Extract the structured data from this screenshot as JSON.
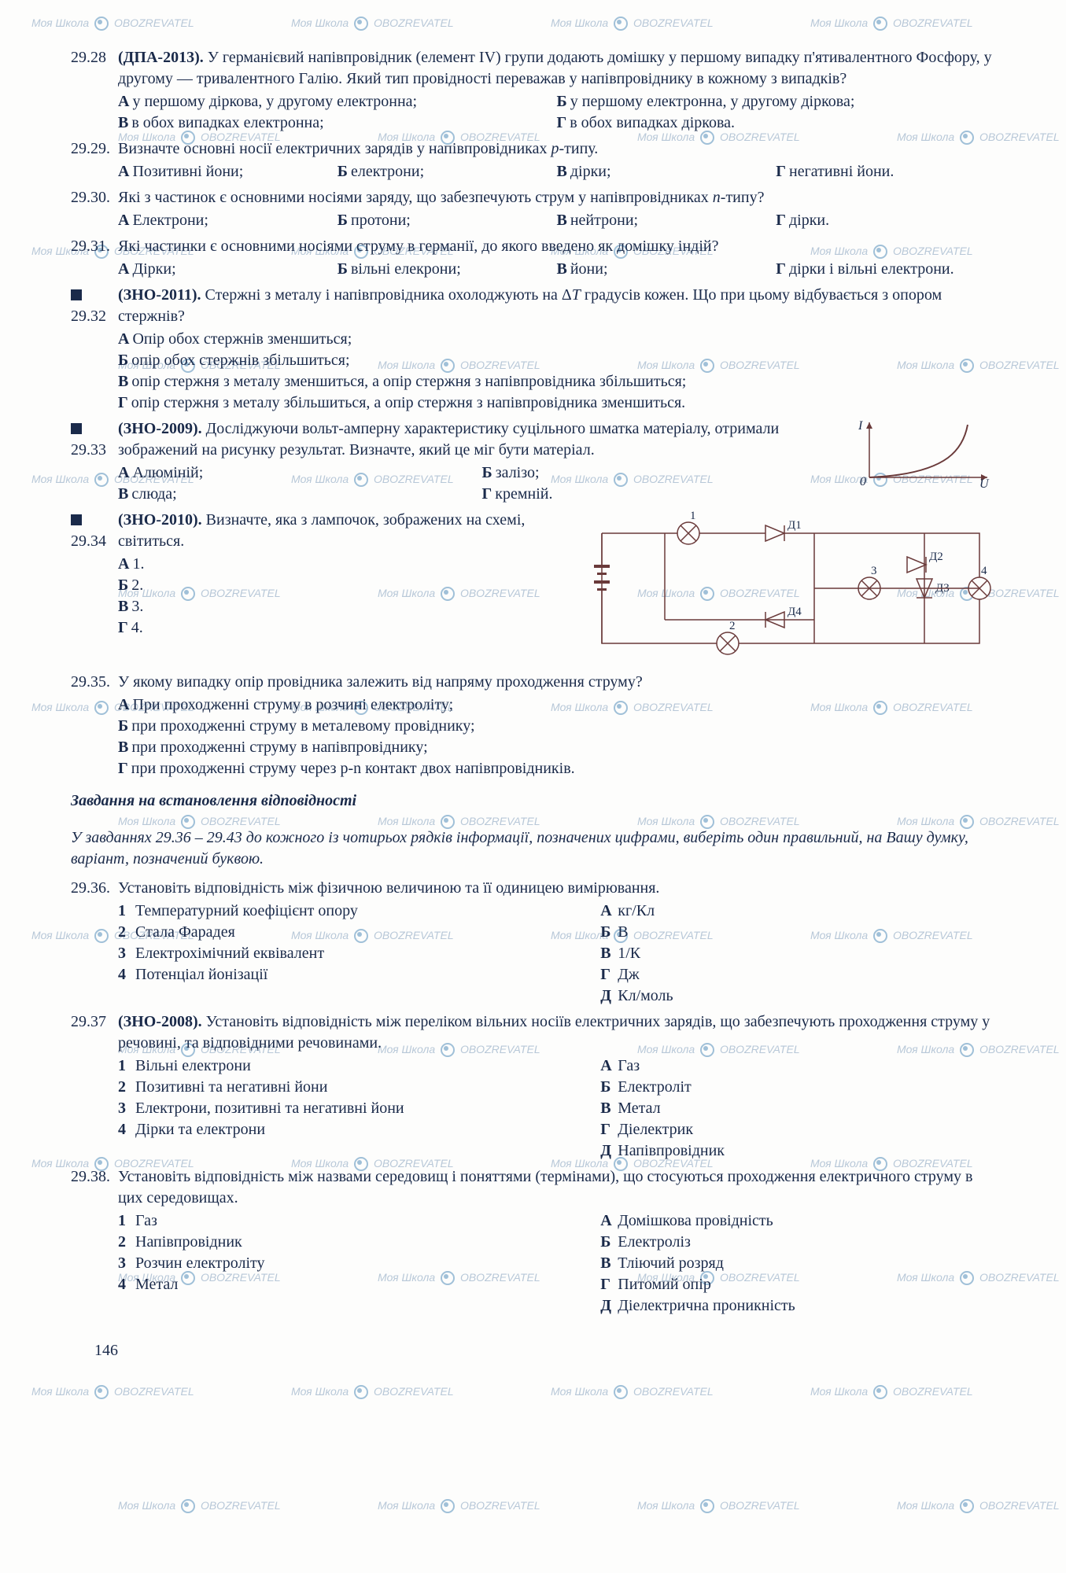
{
  "watermark": {
    "text1": "Моя Школа",
    "text2": "OBOZREVATEL"
  },
  "page_number": "146",
  "questions": [
    {
      "num": "29.28",
      "tag": "(ДПА-2013).",
      "text": "У германієвий напівпровідник (елемент IV) групи додають домішку у першому випадку п'ятивалентного Фосфору, у другому — тривалентного Галію. Який тип провідності переважав у напівпровіднику в кожному з випадків?",
      "layout": "2col",
      "options": [
        {
          "l": "А",
          "t": "у першому діркова, у другому електронна;"
        },
        {
          "l": "Б",
          "t": "у першому електронна, у другому діркова;"
        },
        {
          "l": "В",
          "t": "в обох випадках електронна;"
        },
        {
          "l": "Г",
          "t": "в обох випадках діркова."
        }
      ]
    },
    {
      "num": "29.29.",
      "text": "Визначте основні носії електричних зарядів у напівпровідниках p-типу.",
      "layout": "4col",
      "options": [
        {
          "l": "А",
          "t": "Позитивні йони;"
        },
        {
          "l": "Б",
          "t": "електрони;"
        },
        {
          "l": "В",
          "t": "дірки;"
        },
        {
          "l": "Г",
          "t": "негативні йони."
        }
      ]
    },
    {
      "num": "29.30.",
      "text": "Які з частинок є основними носіями заряду, що забезпечують струм у напівпровідниках n-типу?",
      "layout": "4col",
      "options": [
        {
          "l": "А",
          "t": "Електрони;"
        },
        {
          "l": "Б",
          "t": "протони;"
        },
        {
          "l": "В",
          "t": "нейтрони;"
        },
        {
          "l": "Г",
          "t": "дірки."
        }
      ]
    },
    {
      "num": "29.31.",
      "text": "Які частинки є основними носіями струму в германії, до якого введено як домішку індій?",
      "layout": "4col",
      "options": [
        {
          "l": "А",
          "t": "Дірки;"
        },
        {
          "l": "Б",
          "t": "вільні елекрони;"
        },
        {
          "l": "В",
          "t": "йони;"
        },
        {
          "l": "Г",
          "t": "дірки і вільні електрони."
        }
      ]
    },
    {
      "num": "29.32",
      "video": true,
      "tag": "(ЗНО-2011).",
      "text": "Стержні з металу і напівпровідника охолоджують на ΔT градусів кожен. Що при цьому відбувається з опором стержнів?",
      "layout": "stack",
      "options": [
        {
          "l": "А",
          "t": "Опір обох стержнів зменшиться;"
        },
        {
          "l": "Б",
          "t": "опір обох стержнів збільшиться;"
        },
        {
          "l": "В",
          "t": "опір стержня з металу зменшиться, а опір стержня з напівпровідника збільшиться;"
        },
        {
          "l": "Г",
          "t": "опір стержня з металу збільшиться, а опір стержня з напівпровідника зменшиться."
        }
      ]
    },
    {
      "num": "29.33",
      "video": true,
      "tag": "(ЗНО-2009).",
      "text": "Досліджуючи вольт-амперну характеристику суцільного шматка матеріалу, отримали зображений на рисунку результат. Визначте, який це міг бути матеріал.",
      "layout": "2col",
      "figure": "iv",
      "options": [
        {
          "l": "А",
          "t": "Алюміній;"
        },
        {
          "l": "Б",
          "t": "залізо;"
        },
        {
          "l": "В",
          "t": "слюда;"
        },
        {
          "l": "Г",
          "t": "кремній."
        }
      ],
      "fig_labels": {
        "y": "I",
        "x": "U",
        "o": "0"
      }
    },
    {
      "num": "29.34",
      "video": true,
      "tag": "(ЗНО-2010).",
      "text": "Визначте, яка з лампочок, зображених на схемі, світиться.",
      "layout": "stack",
      "figure": "circuit",
      "options": [
        {
          "l": "А",
          "t": "1."
        },
        {
          "l": "Б",
          "t": "2."
        },
        {
          "l": "В",
          "t": "3."
        },
        {
          "l": "Г",
          "t": "4."
        }
      ],
      "fig_labels": {
        "l1": "1",
        "l2": "2",
        "l3": "3",
        "l4": "4",
        "d1": "Д1",
        "d2": "Д2",
        "d3": "Д3",
        "d4": "Д4"
      }
    },
    {
      "num": "29.35.",
      "text": "У якому випадку опір провідника залежить від напряму проходження струму?",
      "layout": "stack",
      "options": [
        {
          "l": "А",
          "t": "При проходженні струму в розчині електроліту;"
        },
        {
          "l": "Б",
          "t": "при проходженні струму в металевому провіднику;"
        },
        {
          "l": "В",
          "t": "при проходженні струму в напівпровіднику;"
        },
        {
          "l": "Г",
          "t": "при проходженні струму через p-n контакт двох напівпровідників."
        }
      ]
    }
  ],
  "section": {
    "title": "Завдання на встановлення відповідності",
    "sub": "У завданнях 29.36 – 29.43 до кожного із чотирьох рядків інформації, позначених цифрами, виберіть один правильний, на Вашу думку, варіант, позначений буквою."
  },
  "matches": [
    {
      "num": "29.36.",
      "text": "Установіть відповідність між фізичною величиною та її одиницею вимірювання.",
      "left": [
        {
          "n": "1",
          "t": "Температурний коефіцієнт опору"
        },
        {
          "n": "2",
          "t": "Стала Фарадея"
        },
        {
          "n": "3",
          "t": "Електрохімічний еквівалент"
        },
        {
          "n": "4",
          "t": "Потенціал йонізації"
        }
      ],
      "right": [
        {
          "l": "А",
          "t": "кг/Кл"
        },
        {
          "l": "Б",
          "t": "В"
        },
        {
          "l": "В",
          "t": "1/К"
        },
        {
          "l": "Г",
          "t": "Дж"
        },
        {
          "l": "Д",
          "t": "Кл/моль"
        }
      ]
    },
    {
      "num": "29.37",
      "tag": "(ЗНО-2008).",
      "text": "Установіть відповідність між переліком вільних носіїв електричних зарядів, що забезпечують проходження струму у речовині, та відповідними речовинами.",
      "left": [
        {
          "n": "1",
          "t": "Вільні електрони"
        },
        {
          "n": "2",
          "t": "Позитивні та негативні йони"
        },
        {
          "n": "3",
          "t": "Електрони, позитивні та негативні йони"
        },
        {
          "n": "4",
          "t": "Дірки та електрони"
        }
      ],
      "right": [
        {
          "l": "А",
          "t": "Газ"
        },
        {
          "l": "Б",
          "t": "Електроліт"
        },
        {
          "l": "В",
          "t": "Метал"
        },
        {
          "l": "Г",
          "t": "Діелектрик"
        },
        {
          "l": "Д",
          "t": "Напівпровідник"
        }
      ]
    },
    {
      "num": "29.38.",
      "text": "Установіть відповідність між назвами середовищ і поняттями (термінами), що стосуються проходження електричного струму в цих середовищах.",
      "left": [
        {
          "n": "1",
          "t": "Газ"
        },
        {
          "n": "2",
          "t": "Напівпровідник"
        },
        {
          "n": "3",
          "t": "Розчин електроліту"
        },
        {
          "n": "4",
          "t": "Метал"
        }
      ],
      "right": [
        {
          "l": "А",
          "t": "Домішкова провідність"
        },
        {
          "l": "Б",
          "t": "Електроліз"
        },
        {
          "l": "В",
          "t": "Тліючий розряд"
        },
        {
          "l": "Г",
          "t": "Питомий опір"
        },
        {
          "l": "Д",
          "t": "Діелектрична проникність"
        }
      ]
    }
  ]
}
